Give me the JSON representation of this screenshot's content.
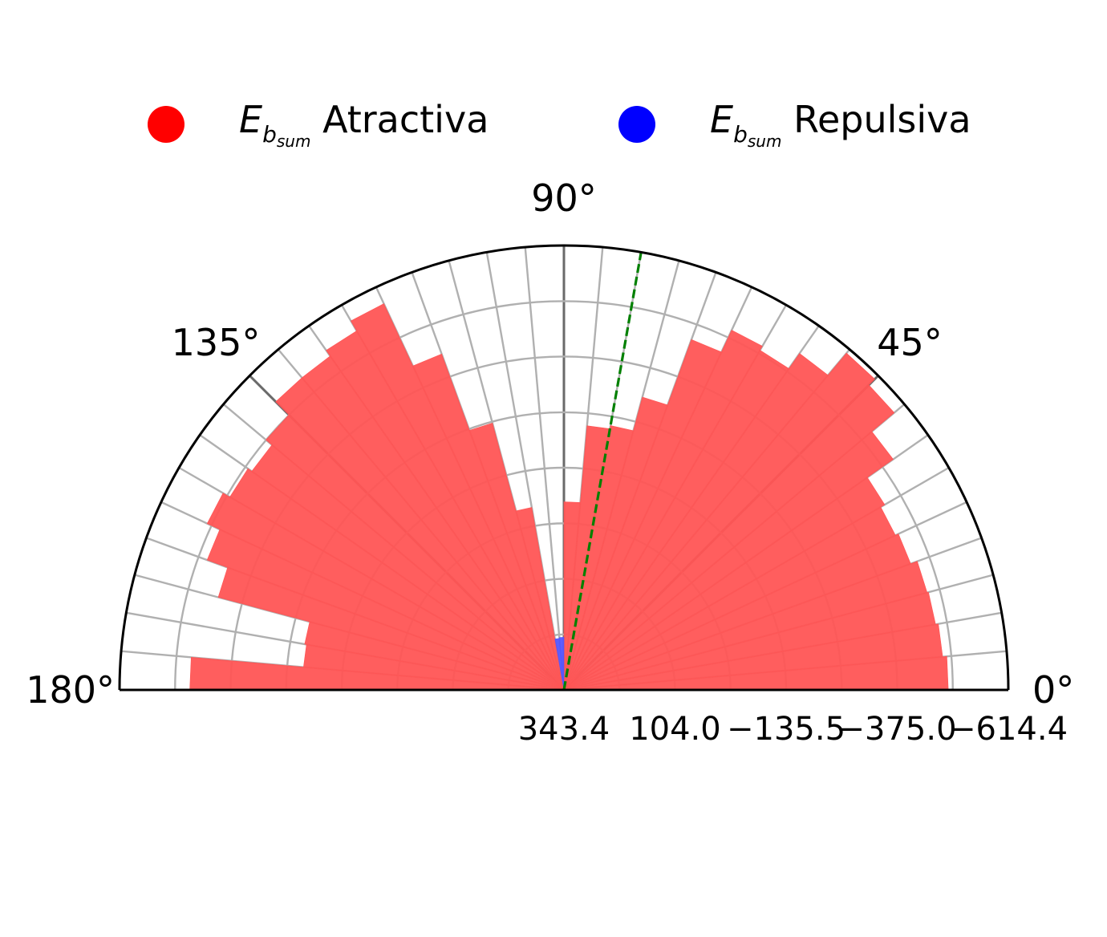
{
  "legend": {
    "position": "top",
    "items": [
      {
        "symbol": "E",
        "sub": "b",
        "subsub": "sum",
        "label": "Atractiva",
        "color": "#ff0000"
      },
      {
        "symbol": "E",
        "sub": "b",
        "subsub": "sum",
        "label": "Repulsiva",
        "color": "#0000ff"
      }
    ]
  },
  "chart_data": {
    "type": "bar",
    "projection": "polar-half",
    "theta_range_deg": [
      0,
      180
    ],
    "radial_axis": "inverted",
    "r_center_value": 343.4,
    "r_outer_value": -614.4,
    "r_tick_labels": [
      "343.4",
      "104.0",
      "−135.5",
      "−375.0",
      "−614.4"
    ],
    "r_tick_values": [
      343.4,
      104.0,
      -135.5,
      -375.0,
      -614.4
    ],
    "r_minor_gridlines": [
      223.7,
      -15.75,
      -255.25,
      -494.7
    ],
    "theta_tick_labels": [
      {
        "deg": 0,
        "label": "0°"
      },
      {
        "deg": 45,
        "label": "45°"
      },
      {
        "deg": 90,
        "label": "90°"
      },
      {
        "deg": 135,
        "label": "135°"
      },
      {
        "deg": 180,
        "label": "180°"
      }
    ],
    "theta_bin_width_deg": 5,
    "grid": true,
    "reference_line_deg": 80,
    "reference_line_color": "#008000",
    "series": [
      {
        "label_ref": 0,
        "color": "#ff5555",
        "bins": [
          {
            "theta": 2.5,
            "value": -485
          },
          {
            "theta": 7.5,
            "value": -476
          },
          {
            "theta": 12.5,
            "value": -470
          },
          {
            "theta": 17.5,
            "value": -467
          },
          {
            "theta": 22.5,
            "value": -452
          },
          {
            "theta": 27.5,
            "value": -445
          },
          {
            "theta": 32.5,
            "value": -455
          },
          {
            "theta": 37.5,
            "value": -523
          },
          {
            "theta": 42.5,
            "value": -586
          },
          {
            "theta": 47.5,
            "value": -604
          },
          {
            "theta": 52.5,
            "value": -542
          },
          {
            "theta": 57.5,
            "value": -502
          },
          {
            "theta": 62.5,
            "value": -512
          },
          {
            "theta": 67.5,
            "value": -460
          },
          {
            "theta": 72.5,
            "value": -310
          },
          {
            "theta": 77.5,
            "value": -235
          },
          {
            "theta": 82.5,
            "value": -228
          },
          {
            "theta": 87.5,
            "value": -62
          },
          {
            "theta": 102.5,
            "value": -56
          },
          {
            "theta": 107.5,
            "value": -252
          },
          {
            "theta": 112.5,
            "value": -427
          },
          {
            "theta": 117.5,
            "value": -575
          },
          {
            "theta": 122.5,
            "value": -550
          },
          {
            "theta": 127.5,
            "value": -535
          },
          {
            "theta": 132.5,
            "value": -535
          },
          {
            "theta": 137.5,
            "value": -495
          },
          {
            "theta": 142.5,
            "value": -478
          },
          {
            "theta": 147.5,
            "value": -488
          },
          {
            "theta": 152.5,
            "value": -505
          },
          {
            "theta": 157.5,
            "value": -475
          },
          {
            "theta": 162.5,
            "value": -428
          },
          {
            "theta": 167.5,
            "value": -224
          },
          {
            "theta": 172.5,
            "value": -220
          },
          {
            "theta": 177.5,
            "value": -463
          }
        ]
      },
      {
        "label_ref": 1,
        "color": "#5555ff",
        "bins": [
          {
            "theta": 92.5,
            "value": 230
          },
          {
            "theta": 97.5,
            "value": 232
          }
        ]
      }
    ]
  }
}
